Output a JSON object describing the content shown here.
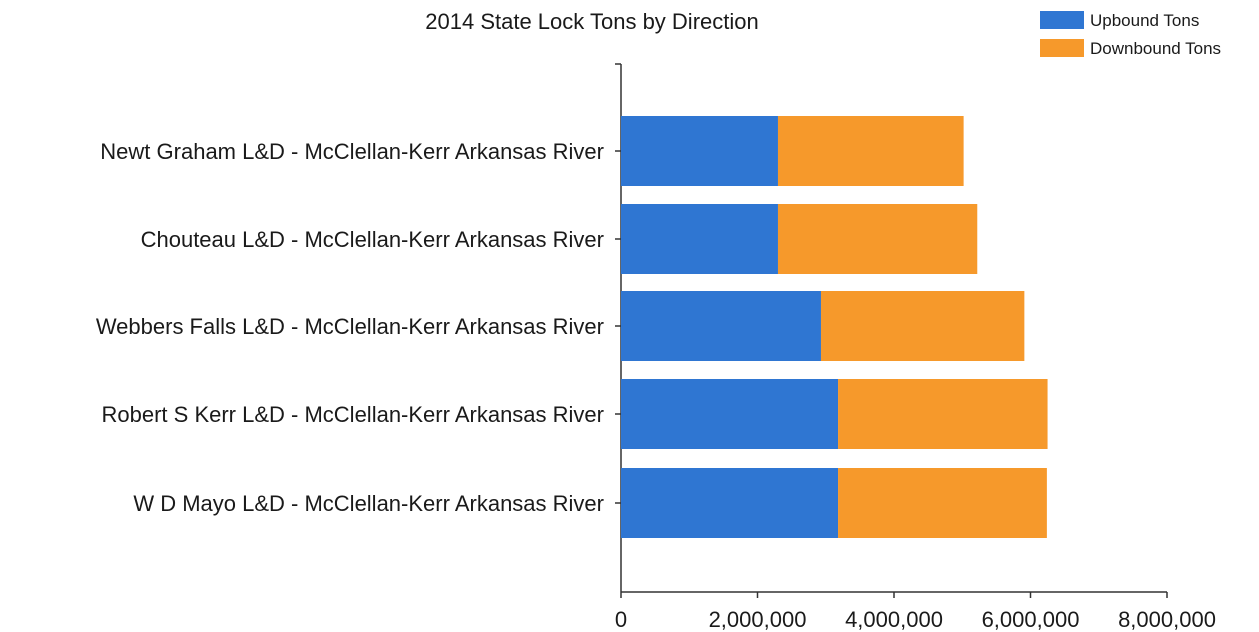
{
  "chart_data": {
    "type": "bar",
    "orientation": "horizontal",
    "stacked": true,
    "title": "2014 State Lock Tons by Direction",
    "xlabel": "",
    "ylabel": "",
    "categories": [
      "Newt Graham L&D - McClellan-Kerr Arkansas River",
      "Chouteau L&D - McClellan-Kerr Arkansas River",
      "Webbers Falls L&D - McClellan-Kerr Arkansas River",
      "Robert S Kerr L&D - McClellan-Kerr Arkansas River",
      "W D Mayo L&D - McClellan-Kerr Arkansas River"
    ],
    "series": [
      {
        "name": "Upbound Tons",
        "color": "#2f76d2",
        "values": [
          2300000,
          2300000,
          2930000,
          3180000,
          3180000
        ]
      },
      {
        "name": "Downbound Tons",
        "color": "#f6992b",
        "values": [
          2720000,
          2920000,
          2980000,
          3070000,
          3060000
        ]
      }
    ],
    "xlim": [
      0,
      8000000
    ],
    "xticks": [
      0,
      2000000,
      4000000,
      6000000,
      8000000
    ],
    "xtick_labels": [
      "0",
      "2,000,000",
      "4,000,000",
      "6,000,000",
      "8,000,000"
    ],
    "grid": false,
    "legend_position": "top-right"
  }
}
